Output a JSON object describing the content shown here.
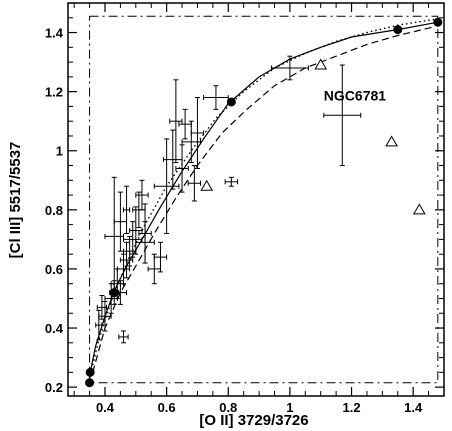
{
  "chart_data": {
    "type": "scatter",
    "xlabel": "[O II] 3729/3726",
    "ylabel": "[Cl III] 5517/5537",
    "xlim": [
      0.28,
      1.5
    ],
    "ylim": [
      0.17,
      1.5
    ],
    "xticks": [
      0.4,
      0.6,
      0.8,
      1,
      1.2,
      1.4
    ],
    "xtick_labels": [
      "0.4",
      "0.6",
      "0.8",
      "1",
      "1.2",
      "1.4"
    ],
    "yticks": [
      0.2,
      0.4,
      0.6,
      0.8,
      1,
      1.2,
      1.4
    ],
    "ytick_labels": [
      "0.2",
      "0.4",
      "0.6",
      "0.8",
      "1",
      "1.2",
      "1.4"
    ],
    "grid": false,
    "annotations": [
      {
        "text": "NGC6781",
        "x": 1.11,
        "y": 1.17
      }
    ],
    "limit_box": {
      "x": [
        0.35,
        1.48
      ],
      "y": [
        0.215,
        1.455
      ]
    },
    "series": [
      {
        "kind": "model-curve-solid",
        "points": [
          [
            0.35,
            0.215
          ],
          [
            0.352,
            0.25
          ],
          [
            0.37,
            0.34
          ],
          [
            0.4,
            0.44
          ],
          [
            0.43,
            0.525
          ],
          [
            0.47,
            0.61
          ],
          [
            0.52,
            0.7
          ],
          [
            0.58,
            0.81
          ],
          [
            0.65,
            0.93
          ],
          [
            0.72,
            1.04
          ],
          [
            0.8,
            1.16
          ],
          [
            0.9,
            1.25
          ],
          [
            1.0,
            1.31
          ],
          [
            1.1,
            1.35
          ],
          [
            1.2,
            1.385
          ],
          [
            1.35,
            1.41
          ],
          [
            1.48,
            1.435
          ]
        ]
      },
      {
        "kind": "model-curve-dashed",
        "points": [
          [
            0.36,
            0.25
          ],
          [
            0.4,
            0.4
          ],
          [
            0.45,
            0.52
          ],
          [
            0.5,
            0.61
          ],
          [
            0.56,
            0.72
          ],
          [
            0.63,
            0.84
          ],
          [
            0.7,
            0.95
          ],
          [
            0.78,
            1.06
          ],
          [
            0.86,
            1.14
          ],
          [
            0.95,
            1.22
          ],
          [
            1.05,
            1.28
          ],
          [
            1.15,
            1.32
          ],
          [
            1.25,
            1.36
          ],
          [
            1.35,
            1.39
          ],
          [
            1.47,
            1.42
          ]
        ]
      },
      {
        "kind": "model-curve-dotted",
        "points": [
          [
            0.35,
            0.23
          ],
          [
            0.38,
            0.36
          ],
          [
            0.42,
            0.49
          ],
          [
            0.47,
            0.62
          ],
          [
            0.53,
            0.75
          ],
          [
            0.6,
            0.88
          ],
          [
            0.68,
            1.0
          ],
          [
            0.76,
            1.11
          ],
          [
            0.85,
            1.2
          ],
          [
            0.95,
            1.28
          ],
          [
            1.05,
            1.33
          ],
          [
            1.15,
            1.37
          ],
          [
            1.25,
            1.4
          ],
          [
            1.35,
            1.425
          ],
          [
            1.47,
            1.445
          ]
        ]
      },
      {
        "kind": "model-points",
        "marker": "filled-circle",
        "points": [
          [
            0.35,
            0.215
          ],
          [
            0.352,
            0.25
          ],
          [
            0.43,
            0.52
          ],
          [
            0.81,
            1.165
          ],
          [
            1.35,
            1.41
          ],
          [
            1.48,
            1.435
          ]
        ]
      },
      {
        "kind": "triangles",
        "marker": "open-triangle",
        "points": [
          [
            0.73,
            0.88
          ],
          [
            1.1,
            1.29
          ],
          [
            1.33,
            1.03
          ],
          [
            1.42,
            0.8
          ]
        ]
      },
      {
        "kind": "observations",
        "marker": "errorbar-cross",
        "points": [
          [
            0.38,
            0.41,
            0.01,
            0.05
          ],
          [
            0.39,
            0.47,
            0.015,
            0.04
          ],
          [
            0.4,
            0.44,
            0.02,
            0.05
          ],
          [
            0.42,
            0.5,
            0.02,
            0.05
          ],
          [
            0.43,
            0.52,
            0.015,
            0.04
          ],
          [
            0.44,
            0.55,
            0.02,
            0.05
          ],
          [
            0.45,
            0.52,
            0.02,
            0.04
          ],
          [
            0.46,
            0.6,
            0.02,
            0.05
          ],
          [
            0.47,
            0.63,
            0.02,
            0.06
          ],
          [
            0.46,
            0.37,
            0.015,
            0.02
          ],
          [
            0.48,
            0.66,
            0.02,
            0.05
          ],
          [
            0.49,
            0.7,
            0.03,
            0.06
          ],
          [
            0.5,
            0.73,
            0.02,
            0.08
          ],
          [
            0.51,
            0.8,
            0.02,
            0.06
          ],
          [
            0.52,
            0.85,
            0.02,
            0.05
          ],
          [
            0.53,
            0.72,
            0.02,
            0.1
          ],
          [
            0.43,
            0.71,
            0.03,
            0.2
          ],
          [
            0.45,
            0.76,
            0.02,
            0.1
          ],
          [
            0.47,
            0.8,
            0.01,
            0.08
          ],
          [
            0.53,
            0.69,
            0.03,
            0.07
          ],
          [
            0.6,
            0.88,
            0.04,
            0.16
          ],
          [
            0.62,
            0.97,
            0.03,
            0.1
          ],
          [
            0.63,
            1.1,
            0.02,
            0.14
          ],
          [
            0.65,
            0.94,
            0.02,
            0.08
          ],
          [
            0.66,
            1.09,
            0.02,
            0.05
          ],
          [
            0.68,
            1.03,
            0.03,
            0.07
          ],
          [
            0.69,
            0.89,
            0.02,
            0.06
          ],
          [
            0.7,
            1.06,
            0.02,
            0.12
          ],
          [
            0.76,
            1.18,
            0.04,
            0.04
          ],
          [
            0.81,
            0.895,
            0.02,
            0.015
          ],
          [
            1.0,
            1.28,
            0.06,
            0.04
          ],
          [
            1.17,
            1.12,
            0.06,
            0.17
          ],
          [
            0.56,
            0.6,
            0.02,
            0.05
          ],
          [
            0.58,
            0.64,
            0.02,
            0.05
          ]
        ]
      }
    ]
  }
}
